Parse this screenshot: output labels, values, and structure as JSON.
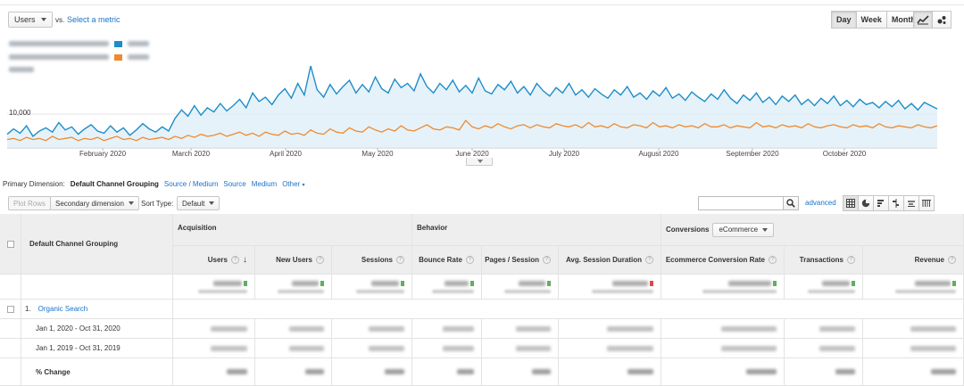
{
  "metric_picker": {
    "selected": "Users",
    "vs_label": "vs.",
    "select_link": "Select a metric"
  },
  "date_buttons": [
    "Day",
    "Week",
    "Month"
  ],
  "chart_data": {
    "type": "line",
    "title": "",
    "xlabel": "",
    "ylabel": "",
    "y_tick_labels": [
      "10,000"
    ],
    "x_tick_labels": [
      "February 2020",
      "March 2020",
      "April 2020",
      "May 2020",
      "June 2020",
      "July 2020",
      "August 2020",
      "September 2020",
      "October 2020"
    ],
    "grid": true,
    "legend_placement": "top-left",
    "series_colors": {
      "current": "#1f8dc9",
      "previous": "#ee8a2f"
    },
    "series": [
      {
        "name": "",
        "color": "#1f8dc9",
        "values": [
          8100,
          8600,
          8200,
          8900,
          7900,
          8400,
          8700,
          8300,
          9200,
          8500,
          8800,
          8100,
          8600,
          9000,
          8400,
          8200,
          8900,
          8300,
          8700,
          8000,
          8500,
          9100,
          8600,
          8300,
          8800,
          8400,
          9600,
          10400,
          9800,
          10800,
          9900,
          10600,
          10200,
          11000,
          10300,
          10800,
          11400,
          10600,
          12000,
          11200,
          11600,
          10900,
          11800,
          12400,
          11500,
          12900,
          11800,
          16400,
          12300,
          11600,
          12800,
          11900,
          12600,
          13200,
          12000,
          12800,
          12100,
          13500,
          12400,
          12000,
          13300,
          12500,
          12900,
          12200,
          13800,
          12600,
          12000,
          12900,
          12300,
          13200,
          12100,
          12700,
          12000,
          13400,
          12200,
          11900,
          12800,
          12300,
          13100,
          12000,
          12600,
          11800,
          12900,
          12200,
          11700,
          12500,
          12000,
          12900,
          11800,
          12300,
          11600,
          12400,
          11900,
          11500,
          12300,
          11800,
          12600,
          11600,
          12000,
          11400,
          12200,
          11700,
          12500,
          11500,
          11900,
          11300,
          12100,
          11600,
          11200,
          11900,
          11400,
          12300,
          11500,
          11000,
          11800,
          11300,
          12000,
          11100,
          11600,
          10900,
          11700,
          11200,
          11800,
          10900,
          11400,
          10800,
          11500,
          11000,
          11700,
          10800,
          11300,
          10700,
          11400,
          10900,
          11100,
          10600,
          11200,
          10700,
          11300,
          10500,
          11000,
          10400,
          11100,
          10800,
          10500
        ]
      },
      {
        "name": "",
        "color": "#ee8a2f",
        "values": [
          7600,
          7700,
          7500,
          7800,
          7600,
          7700,
          7500,
          7900,
          7600,
          7700,
          7800,
          7500,
          7700,
          7600,
          7800,
          7500,
          7700,
          7900,
          7600,
          7700,
          7500,
          7800,
          7600,
          7700,
          7800,
          7600,
          7900,
          7700,
          8000,
          7800,
          8100,
          7900,
          8000,
          8200,
          7900,
          8100,
          8300,
          8000,
          8200,
          7900,
          8300,
          8100,
          8000,
          8400,
          8100,
          8200,
          8000,
          8500,
          8200,
          8100,
          8600,
          8300,
          8200,
          8700,
          8400,
          8300,
          8800,
          8500,
          8300,
          8600,
          8400,
          8900,
          8500,
          8400,
          8700,
          9000,
          8600,
          8500,
          8800,
          8700,
          8500,
          9400,
          8800,
          8600,
          8900,
          8700,
          9100,
          8800,
          8600,
          8900,
          9000,
          8700,
          9000,
          8800,
          8700,
          9100,
          8900,
          8800,
          9000,
          8700,
          9200,
          8800,
          8900,
          8700,
          9100,
          8800,
          8700,
          9000,
          8900,
          8700,
          9200,
          8800,
          8900,
          8700,
          9000,
          8800,
          8900,
          8700,
          9100,
          8800,
          8800,
          9000,
          8700,
          8900,
          8800,
          8700,
          9200,
          8800,
          8900,
          8700,
          9000,
          8800,
          8900,
          8700,
          9100,
          8800,
          8700,
          8900,
          9000,
          8800,
          8700,
          9000,
          8800,
          8900,
          8700,
          9100,
          8800,
          8700,
          8900,
          8800,
          8700,
          9000,
          8800,
          8700,
          8900
        ]
      }
    ]
  },
  "primary_dimension": {
    "label": "Primary Dimension:",
    "active": "Default Channel Grouping",
    "options": [
      "Source / Medium",
      "Source",
      "Medium",
      "Other"
    ]
  },
  "toolbar": {
    "plot_rows": "Plot Rows",
    "secondary_dimension": "Secondary dimension",
    "sort_type_label": "Sort Type:",
    "sort_type_value": "Default",
    "advanced": "advanced"
  },
  "table": {
    "row_header": "Default Channel Grouping",
    "groups": {
      "acquisition": "Acquisition",
      "behavior": "Behavior",
      "conversions": "Conversions",
      "conversions_select": "eCommerce"
    },
    "columns": [
      "Users",
      "New Users",
      "Sessions",
      "Bounce Rate",
      "Pages / Session",
      "Avg. Session Duration",
      "Ecommerce Conversion Rate",
      "Transactions",
      "Revenue"
    ],
    "rows": [
      {
        "index": "1.",
        "label": "Organic Search"
      },
      {
        "index": "",
        "label": "Jan 1, 2020 - Oct 31, 2020"
      },
      {
        "index": "",
        "label": "Jan 1, 2019 - Oct 31, 2019"
      },
      {
        "index": "",
        "label": "% Change"
      }
    ]
  }
}
